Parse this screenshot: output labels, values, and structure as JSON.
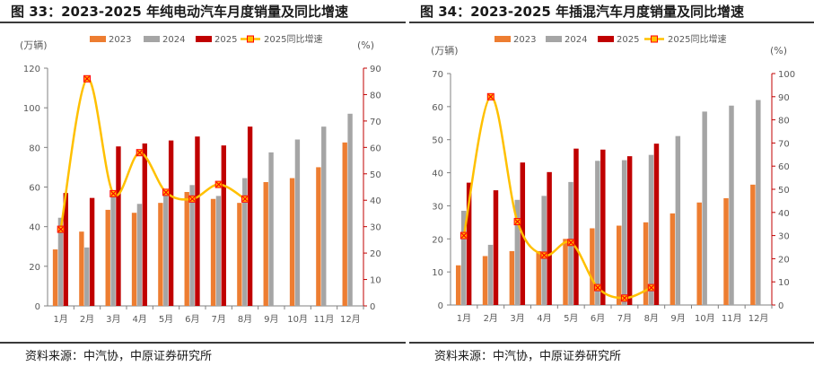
{
  "colors": {
    "y2023": "#ED7D31",
    "y2024": "#A5A5A5",
    "y2025": "#C00000",
    "growth": "#FFC000",
    "growth_marker": "#FF0000"
  },
  "chart_data": [
    {
      "id": "left",
      "type": "bar",
      "title": "图 33：2023-2025 年纯电动汽车月度销量及同比增速",
      "source": "资料来源：中汽协，中原证券研究所",
      "ylabel": "(万辆)",
      "y2label": "(%)",
      "ylim": [
        0,
        120
      ],
      "y2lim": [
        0,
        90
      ],
      "yticks": [
        0,
        20,
        40,
        60,
        80,
        100,
        120
      ],
      "y2ticks": [
        0,
        10,
        20,
        30,
        40,
        50,
        60,
        70,
        80,
        90
      ],
      "categories": [
        "1月",
        "2月",
        "3月",
        "4月",
        "5月",
        "6月",
        "7月",
        "8月",
        "9月",
        "10月",
        "11月",
        "12月"
      ],
      "series": [
        {
          "name": "2023",
          "values": [
            28.5,
            37.5,
            48.5,
            47,
            52,
            57.5,
            54,
            52,
            62.5,
            64.5,
            70,
            82.5
          ]
        },
        {
          "name": "2024",
          "values": [
            44.5,
            29.5,
            55,
            51.5,
            56,
            61,
            55.5,
            64.5,
            77.5,
            84,
            90.5,
            97
          ]
        },
        {
          "name": "2025",
          "values": [
            57,
            54.5,
            80.5,
            82,
            83.5,
            85.5,
            81,
            90.5,
            null,
            null,
            null,
            null
          ]
        }
      ],
      "line": {
        "name": "2025同比增速",
        "values": [
          29,
          86,
          42.5,
          58,
          43,
          40.5,
          46,
          40.5
        ]
      }
    },
    {
      "id": "right",
      "type": "bar",
      "title": "图 34：2023-2025 年插混汽车月度销量及同比增速",
      "source": "资料来源：中汽协，中原证券研究所",
      "ylabel": "(万辆)",
      "y2label": "(%)",
      "ylim": [
        0,
        70
      ],
      "y2lim": [
        0,
        100
      ],
      "yticks": [
        0,
        10,
        20,
        30,
        40,
        50,
        60,
        70
      ],
      "y2ticks": [
        0,
        10,
        20,
        30,
        40,
        50,
        60,
        70,
        80,
        90,
        100
      ],
      "categories": [
        "1月",
        "2月",
        "3月",
        "4月",
        "5月",
        "6月",
        "7月",
        "8月",
        "9月",
        "10月",
        "11月",
        "12月"
      ],
      "series": [
        {
          "name": "2023",
          "values": [
            12,
            14.8,
            16.3,
            16.3,
            20,
            23.2,
            24,
            25,
            27.7,
            31,
            32.3,
            36.4
          ]
        },
        {
          "name": "2024",
          "values": [
            28.5,
            18.2,
            31.8,
            33,
            37.2,
            43.6,
            43.8,
            45.4,
            51.1,
            58.5,
            60.3,
            62
          ]
        },
        {
          "name": "2025",
          "values": [
            37,
            34.7,
            43.1,
            40.2,
            47.3,
            47,
            45,
            48.8,
            null,
            null,
            null,
            null
          ]
        }
      ],
      "line": {
        "name": "2025同比增速",
        "values": [
          30,
          90,
          36,
          21.5,
          27,
          7.5,
          3,
          7.5
        ]
      }
    }
  ]
}
